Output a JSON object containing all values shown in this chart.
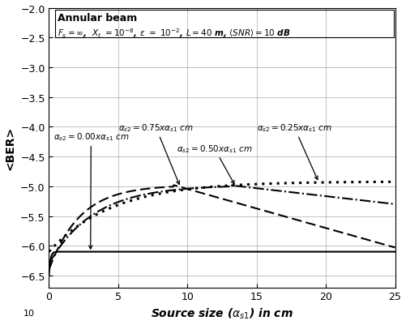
{
  "title_line1": "Annular beam",
  "title_line2_part1": "$\\mathit{F_s = \\infty}$,  $\\mathit{X_t}$ = 10",
  "xlabel": "Source size ($\\alpha_{s1}$) in cm",
  "ylabel": "<BER>",
  "xlim": [
    0,
    25
  ],
  "ylim": [
    -6.7,
    -2.0
  ],
  "yticks": [
    -6.5,
    -6.0,
    -5.5,
    -5.0,
    -4.5,
    -4.0,
    -3.5,
    -3.0,
    -2.5,
    -2.0
  ],
  "xticks": [
    0,
    5,
    10,
    15,
    20,
    25
  ],
  "background": "#ffffff"
}
